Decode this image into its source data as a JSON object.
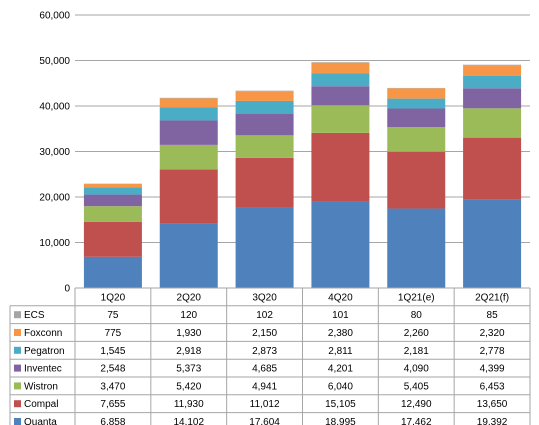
{
  "chart_data": {
    "type": "bar",
    "stacked": true,
    "categories": [
      "1Q20",
      "2Q20",
      "3Q20",
      "4Q20",
      "1Q21(e)",
      "2Q21(f)"
    ],
    "ylim": [
      0,
      60000
    ],
    "yticks": [
      "0",
      "10,000",
      "20,000",
      "30,000",
      "40,000",
      "50,000",
      "60,000"
    ],
    "grid": true,
    "legend": "data-table",
    "series": [
      {
        "name": "Quanta",
        "color": "#4F81BD",
        "values": [
          6858,
          14102,
          17604,
          18995,
          17462,
          19392
        ],
        "labels": [
          "6,858",
          "14,102",
          "17,604",
          "18,995",
          "17,462",
          "19,392"
        ]
      },
      {
        "name": "Compal",
        "color": "#C0504D",
        "values": [
          7655,
          11930,
          11012,
          15105,
          12490,
          13650
        ],
        "labels": [
          "7,655",
          "11,930",
          "11,012",
          "15,105",
          "12,490",
          "13,650"
        ]
      },
      {
        "name": "Wistron",
        "color": "#9BBB59",
        "values": [
          3470,
          5420,
          4941,
          6040,
          5405,
          6453
        ],
        "labels": [
          "3,470",
          "5,420",
          "4,941",
          "6,040",
          "5,405",
          "6,453"
        ]
      },
      {
        "name": "Inventec",
        "color": "#8064A2",
        "values": [
          2548,
          5373,
          4685,
          4201,
          4090,
          4399
        ],
        "labels": [
          "2,548",
          "5,373",
          "4,685",
          "4,201",
          "4,090",
          "4,399"
        ]
      },
      {
        "name": "Pegatron",
        "color": "#4BACC6",
        "values": [
          1545,
          2918,
          2873,
          2811,
          2181,
          2778
        ],
        "labels": [
          "1,545",
          "2,918",
          "2,873",
          "2,811",
          "2,181",
          "2,778"
        ]
      },
      {
        "name": "Foxconn",
        "color": "#F79646",
        "values": [
          775,
          1930,
          2150,
          2380,
          2260,
          2320
        ],
        "labels": [
          "775",
          "1,930",
          "2,150",
          "2,380",
          "2,260",
          "2,320"
        ]
      },
      {
        "name": "ECS",
        "color": "#A5A5A5",
        "values": [
          75,
          120,
          102,
          101,
          80,
          85
        ],
        "labels": [
          "75",
          "120",
          "102",
          "101",
          "80",
          "85"
        ]
      }
    ]
  }
}
